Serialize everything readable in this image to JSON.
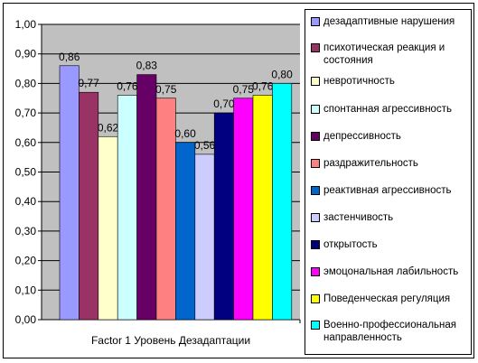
{
  "chart_data": {
    "type": "bar",
    "categories": [
      "Factor 1 Уровень Дезадаптации"
    ],
    "xlabel": "",
    "ylabel": "",
    "ylim": [
      0,
      1
    ],
    "yticks": [
      "0,00",
      "0,10",
      "0,20",
      "0,30",
      "0,40",
      "0,50",
      "0,60",
      "0,70",
      "0,80",
      "0,90",
      "1,00"
    ],
    "grid": true,
    "legend_position": "right",
    "plot_background": "#c0c0c0",
    "series": [
      {
        "name": "дезадаптивные нарушения",
        "values": [
          0.86
        ],
        "label": "0,86",
        "color": "#9999ff"
      },
      {
        "name": "психотическая реакция и состояния",
        "values": [
          0.77
        ],
        "label": "0,77",
        "color": "#993366"
      },
      {
        "name": "невротичность",
        "values": [
          0.62
        ],
        "label": "0,62",
        "color": "#ffffcc"
      },
      {
        "name": "спонтанная агрессивность",
        "values": [
          0.76
        ],
        "label": "0,76",
        "color": "#ccffff"
      },
      {
        "name": "депрессивность",
        "values": [
          0.83
        ],
        "label": "0,83",
        "color": "#660066"
      },
      {
        "name": "раздражительность",
        "values": [
          0.75
        ],
        "label": "0,75",
        "color": "#ff8080"
      },
      {
        "name": "реактивная агрессивность",
        "values": [
          0.6
        ],
        "label": "0,60",
        "color": "#0066cc"
      },
      {
        "name": "застенчивость",
        "values": [
          0.56
        ],
        "label": "0,56",
        "color": "#ccccff"
      },
      {
        "name": "открытость",
        "values": [
          0.7
        ],
        "label": "0,70",
        "color": "#000080"
      },
      {
        "name": "эмоцональная лабильность",
        "values": [
          0.75
        ],
        "label": "0,75",
        "color": "#ff00ff"
      },
      {
        "name": "Поведенческая регуляция",
        "values": [
          0.76
        ],
        "label": "0,76",
        "color": "#ffff00"
      },
      {
        "name": "Военно-профессиональная направленность",
        "values": [
          0.8
        ],
        "label": "0,80",
        "color": "#00ffff"
      }
    ]
  }
}
